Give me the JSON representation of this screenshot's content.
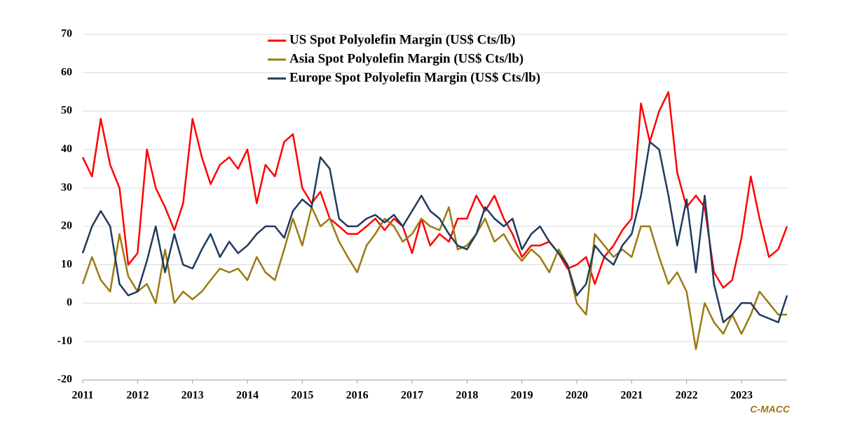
{
  "chart_data": {
    "type": "line",
    "x": [
      2011,
      2011.17,
      2011.33,
      2011.5,
      2011.67,
      2011.83,
      2012,
      2012.17,
      2012.33,
      2012.5,
      2012.67,
      2012.83,
      2013,
      2013.17,
      2013.33,
      2013.5,
      2013.67,
      2013.83,
      2014,
      2014.17,
      2014.33,
      2014.5,
      2014.67,
      2014.83,
      2015,
      2015.17,
      2015.33,
      2015.5,
      2015.67,
      2015.83,
      2016,
      2016.17,
      2016.33,
      2016.5,
      2016.67,
      2016.83,
      2017,
      2017.17,
      2017.33,
      2017.5,
      2017.67,
      2017.83,
      2018,
      2018.17,
      2018.33,
      2018.5,
      2018.67,
      2018.83,
      2019,
      2019.17,
      2019.33,
      2019.5,
      2019.67,
      2019.83,
      2020,
      2020.17,
      2020.33,
      2020.5,
      2020.67,
      2020.83,
      2021,
      2021.17,
      2021.33,
      2021.5,
      2021.67,
      2021.83,
      2022,
      2022.17,
      2022.33,
      2022.5,
      2022.67,
      2022.83,
      2023,
      2023.17,
      2023.33,
      2023.5,
      2023.67,
      2023.83
    ],
    "series": [
      {
        "name": "US Spot Polyolefin Margin (US$ Cts/lb)",
        "color": "#ff0000",
        "values": [
          38,
          33,
          48,
          36,
          30,
          10,
          13,
          40,
          30,
          25,
          19,
          26,
          48,
          38,
          31,
          36,
          38,
          35,
          40,
          26,
          36,
          33,
          42,
          44,
          30,
          26,
          29,
          22,
          20,
          18,
          18,
          20,
          22,
          19,
          22,
          20,
          13,
          22,
          15,
          18,
          16,
          22,
          22,
          28,
          24,
          28,
          22,
          18,
          12,
          15,
          15,
          16,
          13,
          9,
          10,
          12,
          5,
          12,
          15,
          19,
          22,
          52,
          42,
          50,
          55,
          34,
          25,
          28,
          25,
          8,
          4,
          6,
          17,
          33,
          22,
          12,
          14,
          20
        ]
      },
      {
        "name": "Asia Spot Polyolefin Margin (US$ Cts/lb)",
        "color": "#9c7a12",
        "values": [
          5,
          12,
          6,
          3,
          18,
          7,
          3,
          5,
          0,
          14,
          0,
          3,
          1,
          3,
          6,
          9,
          8,
          9,
          6,
          12,
          8,
          6,
          14,
          22,
          15,
          25,
          20,
          22,
          16,
          12,
          8,
          15,
          18,
          22,
          20,
          16,
          18,
          22,
          20,
          19,
          25,
          14,
          15,
          18,
          22,
          16,
          18,
          14,
          11,
          14,
          12,
          8,
          14,
          10,
          0,
          -3,
          18,
          15,
          12,
          14,
          12,
          20,
          20,
          12,
          5,
          8,
          3,
          -12,
          0,
          -5,
          -8,
          -3,
          -8,
          -3,
          3,
          0,
          -3,
          -3
        ]
      },
      {
        "name": "Europe Spot Polyolefin Margin (US$ Cts/lb)",
        "color": "#1f3b5c",
        "values": [
          13,
          20,
          24,
          20,
          5,
          2,
          3,
          11,
          20,
          8,
          18,
          10,
          9,
          14,
          18,
          12,
          16,
          13,
          15,
          18,
          20,
          20,
          17,
          24,
          27,
          25,
          38,
          35,
          22,
          20,
          20,
          22,
          23,
          21,
          23,
          20,
          24,
          28,
          24,
          22,
          18,
          15,
          14,
          18,
          25,
          22,
          20,
          22,
          14,
          18,
          20,
          16,
          13,
          10,
          2,
          5,
          15,
          12,
          10,
          15,
          18,
          28,
          42,
          40,
          28,
          15,
          27,
          8,
          28,
          5,
          -5,
          -3,
          0,
          0,
          -3,
          -4,
          -5,
          2
        ]
      }
    ],
    "xlim": [
      2011,
      2023.83
    ],
    "xticks": [
      2011,
      2012,
      2013,
      2014,
      2015,
      2016,
      2017,
      2018,
      2019,
      2020,
      2021,
      2022,
      2023
    ],
    "ylim": [
      -20,
      70
    ],
    "yticks": [
      -20,
      -10,
      0,
      10,
      20,
      30,
      40,
      50,
      60,
      70
    ],
    "grid": true,
    "source": "C-MACC"
  }
}
